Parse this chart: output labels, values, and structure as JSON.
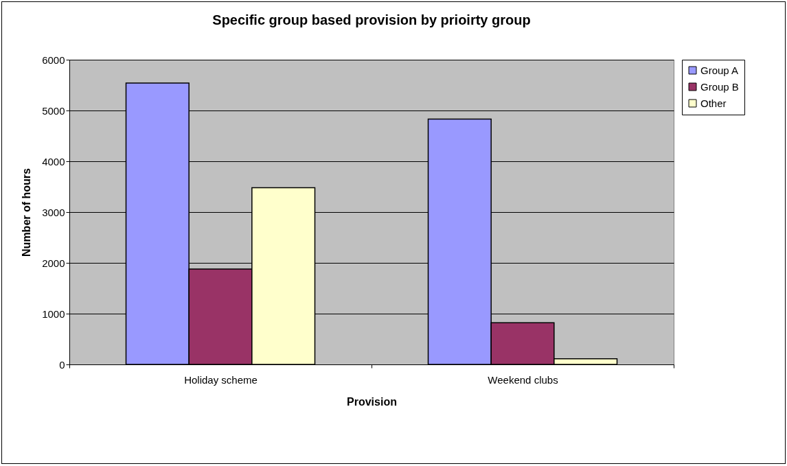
{
  "chart_data": {
    "type": "bar",
    "title": "Specific group based provision by prioirty group",
    "xlabel": "Provision",
    "ylabel": "Number of hours",
    "categories": [
      "Holiday scheme",
      "Weekend clubs"
    ],
    "series": [
      {
        "name": "Group A",
        "color": "#9999ff",
        "values": [
          5540,
          4830
        ]
      },
      {
        "name": "Group B",
        "color": "#993366",
        "values": [
          1880,
          820
        ]
      },
      {
        "name": "Other",
        "color": "#ffffcc",
        "values": [
          3480,
          110
        ]
      }
    ],
    "ylim": [
      0,
      6000
    ],
    "yticks": [
      0,
      1000,
      2000,
      3000,
      4000,
      5000,
      6000
    ],
    "grid": "y",
    "legend": "right"
  }
}
